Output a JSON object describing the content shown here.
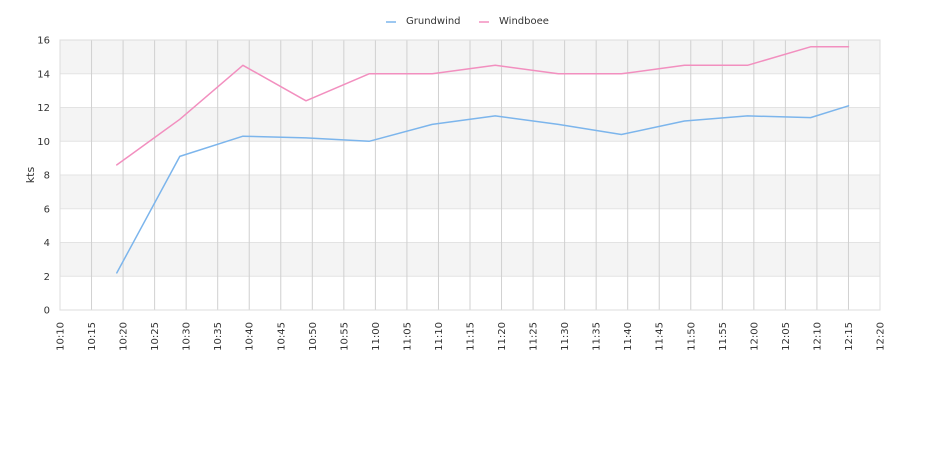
{
  "chart_data": {
    "type": "line",
    "title": "",
    "xlabel": "",
    "ylabel": "kts",
    "ylim": [
      0,
      16
    ],
    "yticks": [
      0,
      2,
      4,
      6,
      8,
      10,
      12,
      14,
      16
    ],
    "xticks": [
      "10:10",
      "10:15",
      "10:20",
      "10:25",
      "10:30",
      "10:35",
      "10:40",
      "10:45",
      "10:50",
      "10:55",
      "11:00",
      "11:05",
      "11:10",
      "11:15",
      "11:20",
      "11:25",
      "11:30",
      "11:35",
      "11:40",
      "11:45",
      "11:50",
      "11:55",
      "12:00",
      "12:05",
      "12:10",
      "12:15",
      "12:20"
    ],
    "xlim": [
      "10:10",
      "12:20"
    ],
    "grid": true,
    "legend_position": "top-center",
    "series": [
      {
        "name": "Grundwind",
        "color": "#7cb5ec",
        "points": [
          {
            "x": "10:19",
            "y": 2.2
          },
          {
            "x": "10:29",
            "y": 9.1
          },
          {
            "x": "10:39",
            "y": 10.3
          },
          {
            "x": "10:49",
            "y": 10.2
          },
          {
            "x": "10:59",
            "y": 10.0
          },
          {
            "x": "11:09",
            "y": 11.0
          },
          {
            "x": "11:19",
            "y": 11.5
          },
          {
            "x": "11:29",
            "y": 11.0
          },
          {
            "x": "11:39",
            "y": 10.4
          },
          {
            "x": "11:49",
            "y": 11.2
          },
          {
            "x": "11:59",
            "y": 11.5
          },
          {
            "x": "12:09",
            "y": 11.4
          },
          {
            "x": "12:15",
            "y": 12.1
          }
        ]
      },
      {
        "name": "Windboee",
        "color": "#f28fbf",
        "points": [
          {
            "x": "10:19",
            "y": 8.6
          },
          {
            "x": "10:29",
            "y": 11.3
          },
          {
            "x": "10:39",
            "y": 14.5
          },
          {
            "x": "10:49",
            "y": 12.4
          },
          {
            "x": "10:59",
            "y": 14.0
          },
          {
            "x": "11:09",
            "y": 14.0
          },
          {
            "x": "11:19",
            "y": 14.5
          },
          {
            "x": "11:29",
            "y": 14.0
          },
          {
            "x": "11:39",
            "y": 14.0
          },
          {
            "x": "11:49",
            "y": 14.5
          },
          {
            "x": "11:59",
            "y": 14.5
          },
          {
            "x": "12:09",
            "y": 15.6
          },
          {
            "x": "12:15",
            "y": 15.6
          }
        ]
      }
    ]
  }
}
